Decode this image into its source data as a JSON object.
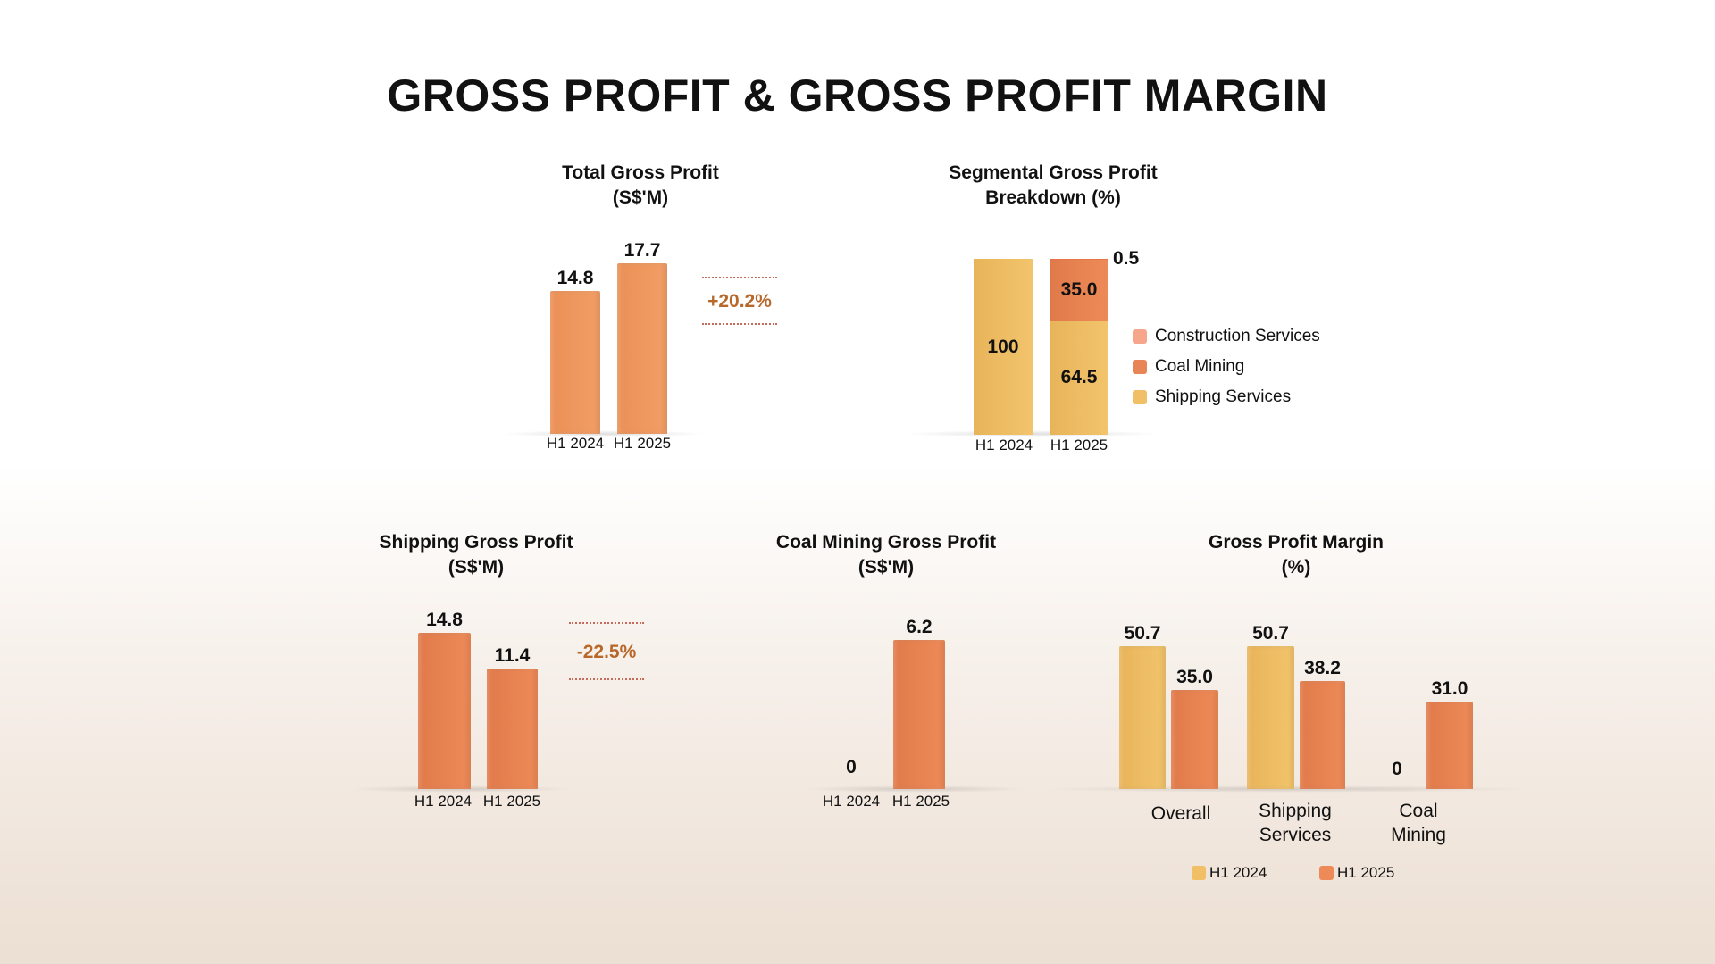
{
  "title": "GROSS PROFIT & GROSS PROFIT MARGIN",
  "colors": {
    "orange": "#ee8a58",
    "yellow": "#f0bf66",
    "construction": "#f6a68a",
    "change": "#b8682a"
  },
  "chart_data": [
    {
      "type": "bar",
      "title": [
        "Total Gross Profit",
        "(S$'M)"
      ],
      "categories": [
        "H1 2024",
        "H1 2025"
      ],
      "values": [
        14.8,
        17.7
      ],
      "value_labels": [
        "14.8",
        "17.7"
      ],
      "change_label": "+20.2%"
    },
    {
      "type": "stacked-bar",
      "title": [
        "Segmental Gross Profit",
        "Breakdown (%)"
      ],
      "categories": [
        "H1 2024",
        "H1 2025"
      ],
      "series": [
        {
          "name": "Construction Services",
          "values": [
            0,
            0.5
          ],
          "labels": [
            "",
            "0.5"
          ]
        },
        {
          "name": "Coal Mining",
          "values": [
            0,
            35.0
          ],
          "labels": [
            "",
            "35.0"
          ]
        },
        {
          "name": "Shipping Services",
          "values": [
            100,
            64.5
          ],
          "labels": [
            "100",
            "64.5"
          ]
        }
      ],
      "legend": "right"
    },
    {
      "type": "bar",
      "title": [
        "Shipping Gross Profit",
        "(S$'M)"
      ],
      "categories": [
        "H1 2024",
        "H1 2025"
      ],
      "values": [
        14.8,
        11.4
      ],
      "value_labels": [
        "14.8",
        "11.4"
      ],
      "change_label": "-22.5%"
    },
    {
      "type": "bar",
      "title": [
        "Coal Mining Gross Profit",
        "(S$'M)"
      ],
      "categories": [
        "H1 2024",
        "H1 2025"
      ],
      "values": [
        0,
        6.2
      ],
      "value_labels": [
        "0",
        "6.2"
      ]
    },
    {
      "type": "bar",
      "title": [
        "Gross Profit Margin",
        "(%)"
      ],
      "categories": [
        [
          "Overall"
        ],
        [
          "Shipping",
          "Services"
        ],
        [
          "Coal",
          "Mining"
        ]
      ],
      "series": [
        {
          "name": "H1 2024",
          "values": [
            50.7,
            50.7,
            0
          ],
          "labels": [
            "50.7",
            "50.7",
            "0"
          ]
        },
        {
          "name": "H1 2025",
          "values": [
            35.0,
            38.2,
            31.0
          ],
          "labels": [
            "35.0",
            "38.2",
            "31.0"
          ]
        }
      ],
      "legend": "bottom"
    }
  ]
}
